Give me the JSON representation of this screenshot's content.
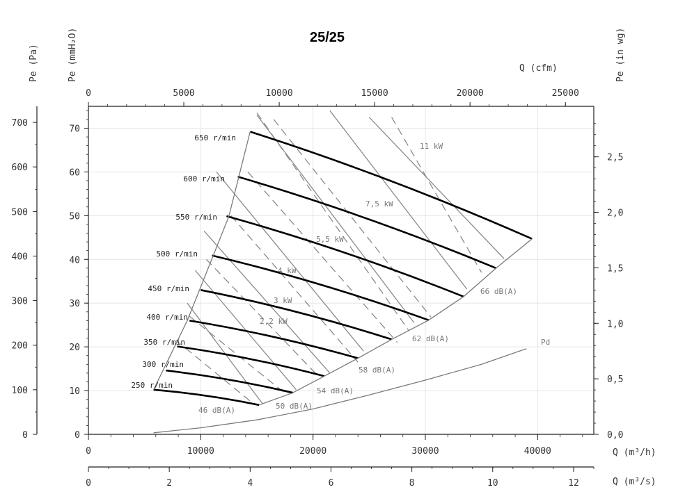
{
  "chart_data": {
    "type": "line",
    "title": "25/25",
    "axes": {
      "x_bottom_1": {
        "label": "Q  (m³/h)",
        "range": [
          0,
          45000
        ],
        "ticks": [
          "0",
          "10000",
          "20000",
          "30000",
          "40000"
        ]
      },
      "x_bottom_2": {
        "label": "Q  (m³/s)",
        "range": [
          0,
          12.5
        ],
        "ticks": [
          "0",
          "2",
          "4",
          "6",
          "8",
          "10",
          "12"
        ]
      },
      "x_top": {
        "label": "Q  (cfm)",
        "range": [
          0,
          26487
        ],
        "ticks": [
          "0",
          "5000",
          "10000",
          "15000",
          "20000",
          "25000"
        ]
      },
      "y_left_1": {
        "label": "Pe  (Pa)",
        "range": [
          0,
          736
        ],
        "ticks": [
          "0",
          "100",
          "200",
          "300",
          "400",
          "500",
          "600",
          "700"
        ]
      },
      "y_left_2": {
        "label": "Pe  (mmH₂O)",
        "range": [
          0,
          75
        ],
        "ticks": [
          "0",
          "10",
          "20",
          "30",
          "40",
          "50",
          "60",
          "70"
        ]
      },
      "y_right": {
        "label": "Pe  (in wg)",
        "range": [
          0,
          2.955
        ],
        "ticks": [
          "0,0",
          "0,5",
          "1,0",
          "1,5",
          "2,0",
          "2,5"
        ]
      }
    },
    "speed_curves": [
      {
        "name": "250 r/min",
        "points": [
          [
            5800,
            10.2
          ],
          [
            15200,
            6.7
          ]
        ]
      },
      {
        "name": "300 r/min",
        "points": [
          [
            6900,
            14.6
          ],
          [
            18200,
            9.5
          ]
        ]
      },
      {
        "name": "350 r/min",
        "points": [
          [
            7900,
            20.1
          ],
          [
            21000,
            13.3
          ]
        ]
      },
      {
        "name": "400 r/min",
        "points": [
          [
            9000,
            26.0
          ],
          [
            24000,
            17.4
          ]
        ]
      },
      {
        "name": "450 r/min",
        "points": [
          [
            10000,
            33.0
          ],
          [
            27000,
            21.7
          ]
        ]
      },
      {
        "name": "500 r/min",
        "points": [
          [
            11000,
            40.9
          ],
          [
            30300,
            26.1
          ]
        ]
      },
      {
        "name": "550 r/min",
        "points": [
          [
            12300,
            49.9
          ],
          [
            33400,
            31.5
          ]
        ]
      },
      {
        "name": "600 r/min",
        "points": [
          [
            13300,
            58.9
          ],
          [
            36300,
            38.0
          ]
        ]
      },
      {
        "name": "650 r/min",
        "points": [
          [
            14400,
            69.2
          ],
          [
            39500,
            44.7
          ]
        ]
      }
    ],
    "power_lines": [
      {
        "name": "2,2 kW",
        "points": [
          [
            8800,
            30.0
          ],
          [
            15500,
            7.0
          ]
        ]
      },
      {
        "name": "3 kW",
        "points": [
          [
            9500,
            37.5
          ],
          [
            18500,
            10.2
          ]
        ]
      },
      {
        "name": "4 kW",
        "points": [
          [
            10300,
            46.5
          ],
          [
            21500,
            14.0
          ]
        ]
      },
      {
        "name": "5,5 kW",
        "points": [
          [
            11400,
            60.0
          ],
          [
            24500,
            19.0
          ]
        ]
      },
      {
        "name": "7,5 kW",
        "points": [
          [
            15000,
            73.0
          ],
          [
            29000,
            25.5
          ]
        ]
      },
      {
        "name": "11 kW",
        "points": [
          [
            21500,
            74.0
          ],
          [
            33700,
            33.2
          ]
        ]
      },
      {
        "name": "",
        "points": [
          [
            25000,
            72.5
          ],
          [
            37000,
            40.2
          ]
        ]
      }
    ],
    "pressure_lines_dashed": [
      {
        "points": [
          [
            7800,
            21.5
          ],
          [
            14500,
            7.4
          ]
        ]
      },
      {
        "points": [
          [
            9000,
            27.0
          ],
          [
            17500,
            9.4
          ]
        ]
      },
      {
        "points": [
          [
            10500,
            40.0
          ],
          [
            20500,
            13.2
          ]
        ]
      },
      {
        "points": [
          [
            12700,
            50.0
          ],
          [
            24000,
            16.5
          ]
        ]
      },
      {
        "points": [
          [
            14200,
            60.0
          ],
          [
            27500,
            21.0
          ]
        ]
      },
      {
        "points": [
          [
            15000,
            73.5
          ],
          [
            28500,
            23.8
          ]
        ]
      },
      {
        "points": [
          [
            16500,
            72.0
          ],
          [
            30500,
            26.8
          ]
        ]
      },
      {
        "points": [
          [
            27000,
            72.5
          ],
          [
            35000,
            37.0
          ]
        ]
      }
    ],
    "sound_lines": [
      {
        "name": "46 dB(A)"
      },
      {
        "name": "50 dB(A)"
      },
      {
        "name": "54 dB(A)"
      },
      {
        "name": "58 dB(A)"
      },
      {
        "name": "62 dB(A)"
      },
      {
        "name": "66 dB(A)"
      }
    ],
    "dynamic_pressure": {
      "name": "Pd",
      "points": [
        [
          5800,
          0.35
        ],
        [
          10000,
          1.5
        ],
        [
          15000,
          3.3
        ],
        [
          20000,
          5.8
        ],
        [
          25000,
          9.0
        ],
        [
          30000,
          12.4
        ],
        [
          35000,
          16.0
        ],
        [
          39000,
          19.6
        ]
      ]
    },
    "envelope": [
      [
        5800,
        10.2
      ],
      [
        8800,
        26.0
      ],
      [
        12500,
        49.8
      ],
      [
        14400,
        69.2
      ]
    ],
    "grid": true
  }
}
